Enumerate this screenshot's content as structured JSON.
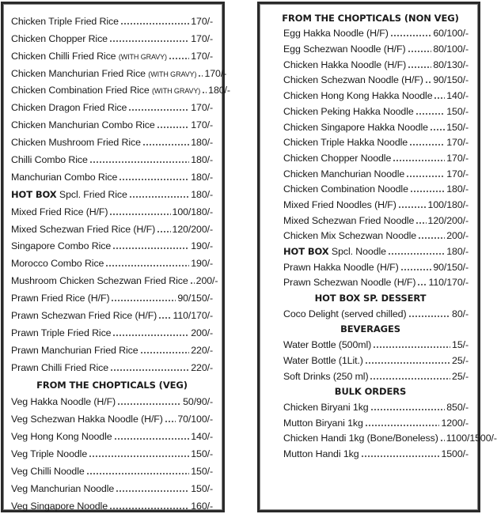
{
  "left": {
    "rice_items": [
      {
        "name": "Chicken Triple Fried Rice",
        "price": "170/-"
      },
      {
        "name": "Chicken Chopper Rice",
        "price": "170/-"
      },
      {
        "name": "Chicken Chilli Fried Rice",
        "note": "(WITH GRAVY)",
        "price": "170/-"
      },
      {
        "name": "Chicken Manchurian Fried Rice",
        "note": "(WITH GRAVY)",
        "price": "170/-"
      },
      {
        "name": "Chicken Combination Fried Rice",
        "note": "(WITH GRAVY)",
        "price": "180/-"
      },
      {
        "name": "Chicken Dragon Fried Rice",
        "price": "170/-"
      },
      {
        "name": "Chicken Manchurian Combo Rice",
        "price": "170/-"
      },
      {
        "name": "Chicken Mushroom Fried Rice",
        "price": "180/-"
      },
      {
        "name": "Chilli Combo Rice",
        "price": "180/-"
      },
      {
        "name": "Manchurian Combo Rice",
        "price": "180/-"
      },
      {
        "bold": "HOT BOX",
        "name": "Spcl. Fried Rice",
        "price": "180/-"
      },
      {
        "name": "Mixed Fried Rice (H/F)",
        "price": "100/180/-"
      },
      {
        "name": "Mixed Schezwan Fried Rice  (H/F)",
        "price": "120/200/-"
      },
      {
        "name": "Singapore Combo Rice",
        "price": "190/-"
      },
      {
        "name": "Morocco Combo Rice",
        "price": "190/-"
      },
      {
        "name": "Mushroom Chicken Schezwan Fried Rice",
        "price": "200/-"
      },
      {
        "name": "Prawn Fried Rice (H/F)",
        "price": "90/150/-"
      },
      {
        "name": "Prawn Schezwan Fried Rice (H/F)",
        "price": "110/170/-"
      },
      {
        "name": "Prawn Triple Fried Rice",
        "price": "200/-"
      },
      {
        "name": "Prawn Manchurian Fried Rice",
        "price": "220/-"
      },
      {
        "name": "Prawn Chilli Fried Rice",
        "price": "220/-"
      }
    ],
    "veg_heading": "FROM THE CHOPTICALS (VEG)",
    "veg_items": [
      {
        "name": "Veg Hakka Noodle  (H/F)",
        "price": "50/90/-"
      },
      {
        "name": "Veg Schezwan Hakka Noodle (H/F)",
        "price": "70/100/-"
      },
      {
        "name": "Veg Hong Kong Noodle",
        "price": "140/-"
      },
      {
        "name": "Veg Triple Noodle",
        "price": "150/-"
      },
      {
        "name": "Veg Chilli Noodle",
        "price": "150/-"
      },
      {
        "name": "Veg Manchurian Noodle",
        "price": "150/-"
      },
      {
        "name": "Veg Singapore Noodle",
        "price": "160/-"
      }
    ]
  },
  "right": {
    "nonveg_heading": "FROM THE CHOPTICALS (NON VEG)",
    "nonveg_items": [
      {
        "name": "Egg Hakka Noodle  (H/F)",
        "price": "60/100/-"
      },
      {
        "name": "Egg Schezwan Noodle  (H/F)",
        "price": "80/100/-"
      },
      {
        "name": "Chicken Hakka Noodle   (H/F)",
        "price": "80/130/-"
      },
      {
        "name": "Chicken Schezwan Noodle  (H/F)",
        "price": "90/150/-"
      },
      {
        "name": "Chicken Hong Kong Hakka Noodle",
        "price": "140/-"
      },
      {
        "name": "Chicken Peking Hakka Noodle",
        "price": "150/-"
      },
      {
        "name": "Chicken Singapore Hakka Noodle",
        "price": "150/-"
      },
      {
        "name": "Chicken Triple Hakka Noodle",
        "price": "170/-"
      },
      {
        "name": "Chicken Chopper Noodle",
        "price": "170/-"
      },
      {
        "name": "Chicken Manchurian Noodle",
        "price": "170/-"
      },
      {
        "name": "Chicken Combination Noodle",
        "price": "180/-"
      },
      {
        "name": "Mixed Fried Noodles (H/F)",
        "price": "100/180/-"
      },
      {
        "name": "Mixed Schezwan Fried Noodle",
        "price": "120/200/-"
      },
      {
        "name": "Chicken Mix Schezwan Noodle",
        "price": "200/-"
      },
      {
        "bold": "HOT BOX",
        "name": "Spcl. Noodle",
        "price": "180/-"
      },
      {
        "name": "Prawn Hakka Noodle (H/F)",
        "price": "90/150/-"
      },
      {
        "name": "Prawn Schezwan Noodle (H/F)",
        "price": "110/170/-"
      }
    ],
    "dessert_heading": "HOT BOX SP. DESSERT",
    "dessert_items": [
      {
        "name": "Coco Delight (served chilled)",
        "price": "80/-"
      }
    ],
    "beverages_heading": "BEVERAGES",
    "beverages_items": [
      {
        "name": "Water Bottle (500ml)",
        "price": "15/-"
      },
      {
        "name": "Water Bottle (1Lit.)",
        "price": "25/-"
      },
      {
        "name": "Soft Drinks (250 ml)",
        "price": "25/-"
      }
    ],
    "bulk_heading": "BULK ORDERS",
    "bulk_items": [
      {
        "name": "Chicken Biryani 1kg",
        "price": "850/-"
      },
      {
        "name": "Mutton Biryani 1kg",
        "price": "1200/-"
      },
      {
        "name": "Chicken Handi 1kg (Bone/Boneless)",
        "price": "1100/1500/-"
      },
      {
        "name": "Mutton Handi 1kg",
        "price": "1500/-"
      }
    ]
  }
}
